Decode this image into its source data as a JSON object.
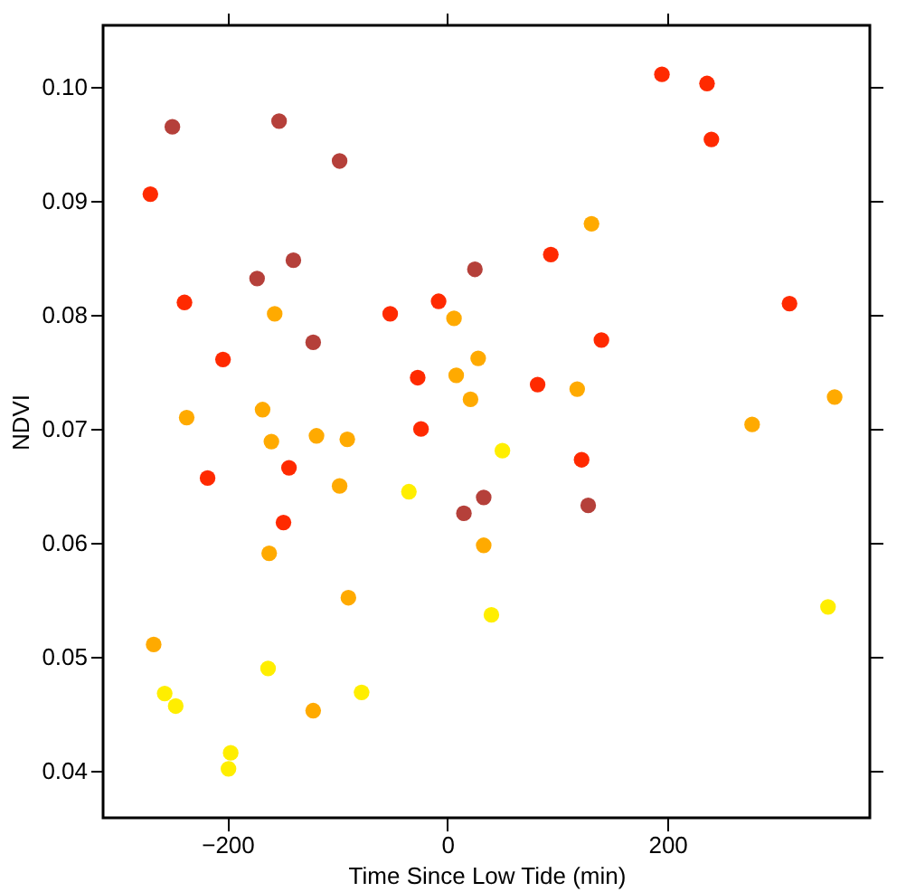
{
  "chart_data": {
    "type": "scatter",
    "xlabel": "Time Since Low Tide (min)",
    "ylabel": "NDVI",
    "xlim": [
      -313,
      384
    ],
    "ylim": [
      0.0359,
      0.1054
    ],
    "xticks": [
      -200,
      0,
      200
    ],
    "yticks": [
      0.04,
      0.05,
      0.06,
      0.07,
      0.08,
      0.09,
      {
        "value": 0.1,
        "label": "0.10"
      }
    ],
    "grid": false,
    "legend": false,
    "series": [
      {
        "color": "#b5403a",
        "x": [
          -250,
          -153,
          -98,
          -173,
          -140,
          -122,
          25,
          15,
          33,
          128
        ],
        "values": [
          0.0965,
          0.097,
          0.0935,
          0.0832,
          0.0848,
          0.0776,
          0.084,
          0.0626,
          0.064,
          0.0633
        ]
      },
      {
        "color": "#ff2a00",
        "x": [
          -270,
          -239,
          -204,
          -52,
          -8,
          -27,
          -24,
          -218,
          -144,
          -149,
          195,
          236,
          240,
          94,
          140,
          82,
          311,
          122
        ],
        "values": [
          0.0906,
          0.0811,
          0.0761,
          0.0801,
          0.0812,
          0.0745,
          0.07,
          0.0657,
          0.0666,
          0.0618,
          0.1011,
          0.1003,
          0.0954,
          0.0853,
          0.0778,
          0.0739,
          0.081,
          0.0673
        ]
      },
      {
        "color": "#ffaa00",
        "x": [
          -157,
          -237,
          -168,
          -160,
          -119,
          -91,
          -98,
          -162,
          -90,
          -267,
          -122,
          6,
          28,
          8,
          21,
          118,
          131,
          352,
          277,
          33
        ],
        "values": [
          0.0801,
          0.071,
          0.0717,
          0.0689,
          0.0694,
          0.0691,
          0.065,
          0.0591,
          0.0552,
          0.0511,
          0.0453,
          0.0797,
          0.0762,
          0.0747,
          0.0726,
          0.0735,
          0.088,
          0.0728,
          0.0704,
          0.0598
        ]
      },
      {
        "color": "#ffee00",
        "x": [
          -35,
          -257,
          -247,
          -163,
          -78,
          -197,
          -199,
          50,
          40,
          346
        ],
        "values": [
          0.0645,
          0.0468,
          0.0457,
          0.049,
          0.0469,
          0.0416,
          0.0402,
          0.0681,
          0.0537,
          0.0544
        ]
      }
    ]
  }
}
